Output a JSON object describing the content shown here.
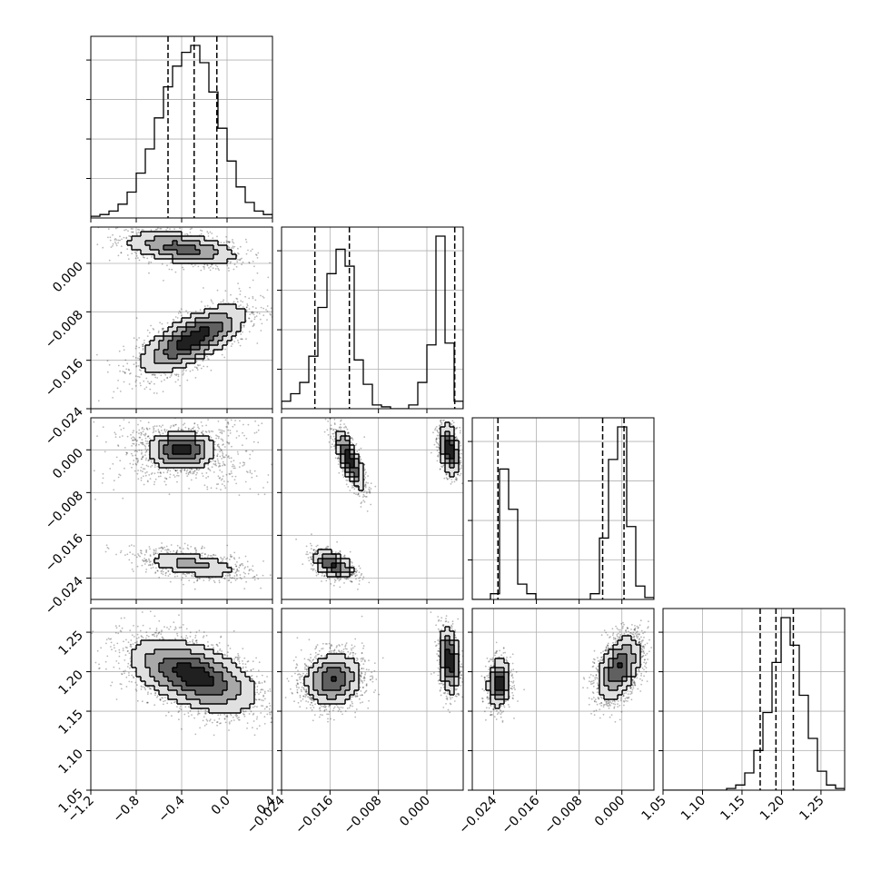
{
  "chart_data": {
    "type": "corner",
    "n_params": 4,
    "grid": true,
    "axes": [
      {
        "range": [
          -1.2,
          0.4
        ],
        "ticks": [
          -1.2,
          -0.8,
          -0.4,
          0.0,
          0.4
        ],
        "tick_labels": [
          "−1.2",
          "−0.8",
          "−0.4",
          "0.0",
          "0.4"
        ]
      },
      {
        "range": [
          -0.024,
          0.006
        ],
        "ticks": [
          -0.024,
          -0.016,
          -0.008,
          0.0
        ],
        "tick_labels": [
          "−0.024",
          "−0.016",
          "−0.008",
          "0.000"
        ]
      },
      {
        "range": [
          -0.028,
          0.006
        ],
        "ticks": [
          -0.024,
          -0.016,
          -0.008,
          0.0
        ],
        "tick_labels": [
          "−0.024",
          "−0.016",
          "−0.008",
          "0.000"
        ]
      },
      {
        "range": [
          1.05,
          1.28
        ],
        "ticks": [
          1.05,
          1.1,
          1.15,
          1.2,
          1.25
        ],
        "tick_labels": [
          "1.05",
          "1.10",
          "1.15",
          "1.20",
          "1.25"
        ]
      }
    ],
    "marginals": [
      {
        "param": 0,
        "quantiles": [
          -0.52,
          -0.29,
          -0.09
        ],
        "edges": [
          -1.2,
          -1.12,
          -1.04,
          -0.96,
          -0.88,
          -0.8,
          -0.72,
          -0.64,
          -0.56,
          -0.48,
          -0.4,
          -0.32,
          -0.24,
          -0.16,
          -0.08,
          0.0,
          0.08,
          0.16,
          0.24,
          0.32,
          0.4
        ],
        "counts": [
          1,
          2,
          4,
          8,
          15,
          26,
          40,
          58,
          76,
          88,
          96,
          100,
          90,
          73,
          52,
          33,
          18,
          9,
          4,
          2
        ]
      },
      {
        "param": 1,
        "quantiles": [
          -0.0185,
          -0.0128,
          0.0046
        ],
        "edges": [
          -0.024,
          -0.0225,
          -0.021,
          -0.0195,
          -0.018,
          -0.0165,
          -0.015,
          -0.0135,
          -0.012,
          -0.0105,
          -0.009,
          -0.0075,
          -0.006,
          -0.0045,
          -0.003,
          -0.0015,
          0.0,
          0.0015,
          0.003,
          0.0045,
          0.006
        ],
        "counts": [
          4,
          8,
          14,
          28,
          54,
          72,
          85,
          76,
          26,
          13,
          2,
          1,
          0,
          0,
          2,
          14,
          34,
          92,
          35,
          4
        ]
      },
      {
        "param": 2,
        "quantiles": [
          -0.0232,
          -0.0036,
          0.0004
        ],
        "edges": [
          -0.028,
          -0.0263,
          -0.0246,
          -0.0229,
          -0.0212,
          -0.0195,
          -0.0178,
          -0.0161,
          -0.0144,
          -0.0127,
          -0.011,
          -0.0093,
          -0.0076,
          -0.0059,
          -0.0042,
          -0.0025,
          -0.0008,
          0.0009,
          0.0026,
          0.0043,
          0.006
        ],
        "counts": [
          0,
          0,
          3,
          68,
          47,
          8,
          3,
          0,
          0,
          0,
          0,
          0,
          0,
          3,
          32,
          73,
          90,
          38,
          7,
          1
        ]
      },
      {
        "param": 3,
        "quantiles": [
          1.173,
          1.193,
          1.215
        ],
        "edges": [
          1.05,
          1.0615,
          1.073,
          1.0845,
          1.096,
          1.1075,
          1.119,
          1.1305,
          1.142,
          1.1535,
          1.165,
          1.1765,
          1.188,
          1.1995,
          1.211,
          1.2225,
          1.234,
          1.2455,
          1.257,
          1.2685,
          1.28
        ],
        "counts": [
          0,
          0,
          0,
          0,
          0,
          0,
          0,
          1,
          3,
          10,
          23,
          45,
          74,
          100,
          84,
          55,
          30,
          11,
          3,
          1
        ]
      }
    ],
    "pairs": [
      {
        "x": 0,
        "y": 1,
        "clusters": [
          {
            "cx": -0.4,
            "cy": 0.0025,
            "sx": 0.28,
            "sy": 0.0016,
            "rho": -0.45,
            "w": 0.35
          },
          {
            "cx": -0.3,
            "cy": -0.0125,
            "sx": 0.25,
            "sy": 0.003,
            "rho": 0.7,
            "w": 0.65
          }
        ]
      },
      {
        "x": 0,
        "y": 2,
        "clusters": [
          {
            "cx": -0.4,
            "cy": 0.0,
            "sx": 0.14,
            "sy": 0.0018,
            "rho": 0.0,
            "w": 0.4
          },
          {
            "cx": -0.4,
            "cy": -0.0005,
            "sx": 0.32,
            "sy": 0.003,
            "rho": -0.7,
            "w": 0.15
          },
          {
            "cx": -0.4,
            "cy": -0.0005,
            "sx": 0.32,
            "sy": 0.003,
            "rho": 0.7,
            "w": 0.15
          },
          {
            "cx": -0.3,
            "cy": -0.0215,
            "sx": 0.25,
            "sy": 0.0015,
            "rho": -0.45,
            "w": 0.3
          }
        ]
      },
      {
        "x": 1,
        "y": 2,
        "clusters": [
          {
            "cx": -0.0128,
            "cy": -0.0018,
            "sx": 0.0013,
            "sy": 0.003,
            "rho": -0.75,
            "w": 0.38
          },
          {
            "cx": 0.0037,
            "cy": 0.0001,
            "sx": 0.0009,
            "sy": 0.0026,
            "rho": -0.35,
            "w": 0.32
          },
          {
            "cx": -0.0155,
            "cy": -0.0215,
            "sx": 0.0018,
            "sy": 0.0014,
            "rho": -0.45,
            "w": 0.3
          }
        ]
      },
      {
        "x": 0,
        "y": 3,
        "clusters": [
          {
            "cx": -0.3,
            "cy": 1.195,
            "sx": 0.3,
            "sy": 0.025,
            "rho": -0.5,
            "w": 1.0
          }
        ]
      },
      {
        "x": 1,
        "y": 3,
        "clusters": [
          {
            "cx": -0.0155,
            "cy": 1.19,
            "sx": 0.0025,
            "sy": 0.018,
            "rho": 0.1,
            "w": 0.65
          },
          {
            "cx": 0.0037,
            "cy": 1.215,
            "sx": 0.0009,
            "sy": 0.022,
            "rho": -0.2,
            "w": 0.35
          }
        ]
      },
      {
        "x": 2,
        "y": 3,
        "clusters": [
          {
            "cx": -0.023,
            "cy": 1.185,
            "sx": 0.0011,
            "sy": 0.016,
            "rho": 0.1,
            "w": 0.33
          },
          {
            "cx": -0.0005,
            "cy": 1.205,
            "sx": 0.0022,
            "sy": 0.022,
            "rho": 0.45,
            "w": 0.67
          }
        ]
      }
    ]
  }
}
